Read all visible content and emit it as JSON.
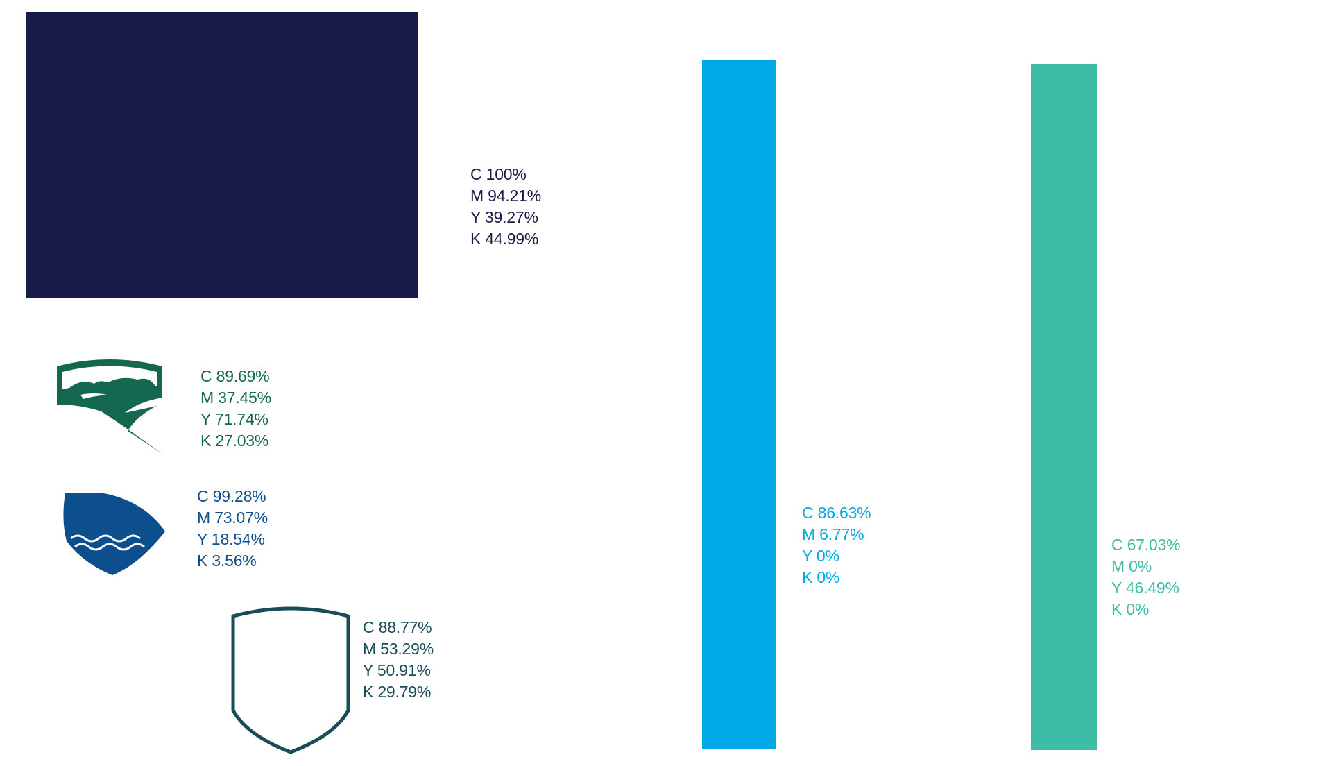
{
  "colors": {
    "navy": "#181b47",
    "green": "#13684f",
    "blue": "#0d4f8d",
    "shield": "#184c57",
    "cyan": "#00a9e6",
    "teal": "#3dbda5"
  },
  "icons": {
    "green_emblem": "hills-emblem-icon",
    "blue_emblem": "waves-emblem-icon",
    "outline_shield": "shield-outline-icon"
  },
  "swatches": {
    "navy": {
      "c": "C 100%",
      "m": "M 94.21%",
      "y": "Y 39.27%",
      "k": "K 44.99%"
    },
    "green": {
      "c": "C 89.69%",
      "m": "M 37.45%",
      "y": "Y 71.74%",
      "k": "K 27.03%"
    },
    "blue": {
      "c": "C 99.28%",
      "m": "M 73.07%",
      "y": "Y 18.54%",
      "k": "K 3.56%"
    },
    "shield": {
      "c": "C 88.77%",
      "m": "M 53.29%",
      "y": "Y 50.91%",
      "k": "K 29.79%"
    },
    "cyan": {
      "c": "C 86.63%",
      "m": "M 6.77%",
      "y": "Y 0%",
      "k": "K 0%"
    },
    "teal": {
      "c": "C 67.03%",
      "m": "M 0%",
      "y": "Y 46.49%",
      "k": "K 0%"
    }
  }
}
